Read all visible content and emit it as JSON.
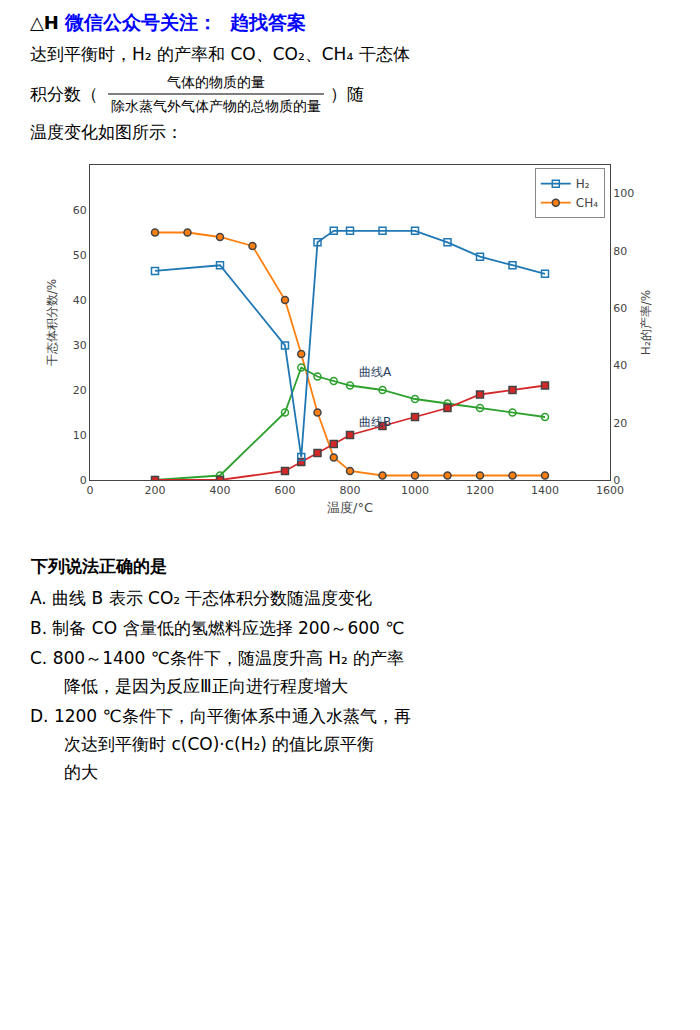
{
  "chart_data": {
    "type": "line",
    "xlabel": "温度/°C",
    "ylabel": "干态体积分数/%",
    "y2label": "H₂的产率/%",
    "xlim": [
      0,
      1600
    ],
    "xticks": [
      0,
      200,
      400,
      600,
      800,
      1000,
      1200,
      1400,
      1600
    ],
    "ylim": [
      0,
      70
    ],
    "yticks": [
      0,
      10,
      20,
      30,
      40,
      50,
      60
    ],
    "y2lim": [
      0,
      110
    ],
    "y2ticks": [
      0,
      20,
      40,
      60,
      80,
      100
    ],
    "grid": false,
    "legend": "upper right",
    "series": [
      {
        "name": "H₂",
        "axis": "y2",
        "marker": "square-open",
        "x": [
          200,
          400,
          600,
          650,
          700,
          750,
          800,
          900,
          1000,
          1100,
          1200,
          1300,
          1400
        ],
        "values": [
          73,
          75,
          47,
          8,
          83,
          87,
          87,
          87,
          87,
          83,
          78,
          75,
          72
        ]
      },
      {
        "name": "CH₄",
        "marker": "circle",
        "x": [
          200,
          300,
          400,
          500,
          600,
          650,
          700,
          750,
          800,
          900,
          1000,
          1100,
          1200,
          1300,
          1400
        ],
        "values": [
          55,
          55,
          54,
          52,
          40,
          28,
          15,
          5,
          2,
          1,
          1,
          1,
          1,
          1,
          1
        ]
      },
      {
        "marker": "circle-open",
        "x": [
          200,
          400,
          600,
          650,
          700,
          750,
          800,
          900,
          1000,
          1100,
          1200,
          1300,
          1400
        ],
        "values": [
          0,
          1,
          15,
          25,
          23,
          22,
          21,
          20,
          18,
          17,
          16,
          15,
          14
        ]
      },
      {
        "marker": "square",
        "x": [
          200,
          400,
          600,
          650,
          700,
          750,
          800,
          900,
          1000,
          1100,
          1200,
          1300,
          1400
        ],
        "values": [
          0,
          0,
          2,
          4,
          6,
          8,
          10,
          12,
          14,
          16,
          19,
          20,
          21
        ]
      }
    ],
    "annotations": [
      {
        "text": "曲线A",
        "x": 820,
        "y": 22
      },
      {
        "text": "曲线B",
        "x": 820,
        "y": 11
      },
      {
        "text": "△H"
      },
      {
        "text": "微信公众号关注：  趋找答案",
        "color": "#0000FF"
      },
      {
        "text": "达到平衡时，H₂ 的产率和 CO、CO₂、CH₄ 干态体"
      },
      {
        "text": "积分数（"
      },
      {
        "text": "气体的物质的量"
      },
      {
        "text": "除水蒸气外气体产物的总物质的量"
      },
      {
        "text": "）随"
      },
      {
        "text": "温度变化如图所示："
      },
      {
        "text": "下列说法正确的是"
      },
      {
        "text": "A. 曲线 B 表示 CO₂ 干态体积分数随温度变化"
      },
      {
        "text": "B. 制备 CO 含量低的氢燃料应选择 200～600 ℃"
      },
      {
        "text": "C. 800～1400 ℃条件下，随温度升高 H₂ 的产率"
      },
      {
        "text": "降低，是因为反应Ⅲ正向进行程度增大"
      },
      {
        "text": "D. 1200 ℃条件下，向平衡体系中通入水蒸气，再"
      },
      {
        "text": "次达到平衡时 c(CO)·c(H₂) 的值比原平衡"
      },
      {
        "text": "的大"
      }
    ]
  }
}
